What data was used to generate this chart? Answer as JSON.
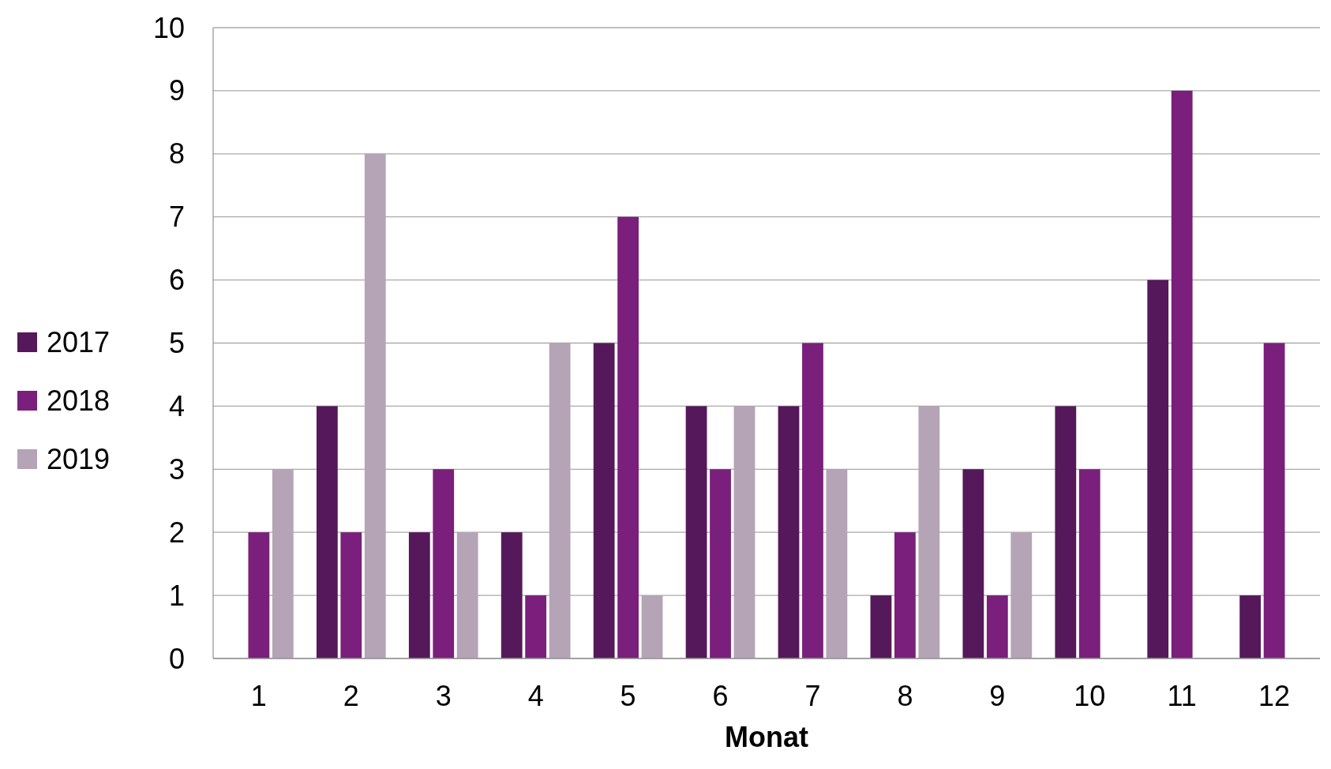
{
  "chart_data": {
    "type": "bar",
    "xlabel": "Monat",
    "categories": [
      "1",
      "2",
      "3",
      "4",
      "5",
      "6",
      "7",
      "8",
      "9",
      "10",
      "11",
      "12"
    ],
    "series": [
      {
        "name": "2017",
        "color": "#55185a",
        "values": [
          null,
          4,
          2,
          2,
          5,
          4,
          4,
          1,
          3,
          4,
          6,
          1
        ]
      },
      {
        "name": "2018",
        "color": "#7a1f7c",
        "values": [
          2,
          2,
          3,
          1,
          7,
          3,
          5,
          2,
          1,
          3,
          9,
          5
        ]
      },
      {
        "name": "2019",
        "color": "#b5a3b6",
        "values": [
          3,
          8,
          2,
          5,
          1,
          4,
          3,
          4,
          2,
          null,
          null,
          null
        ]
      }
    ],
    "ylim": [
      0,
      10
    ],
    "yticks": [
      0,
      1,
      2,
      3,
      4,
      5,
      6,
      7,
      8,
      9,
      10
    ],
    "grid": "y",
    "legend": "left"
  }
}
